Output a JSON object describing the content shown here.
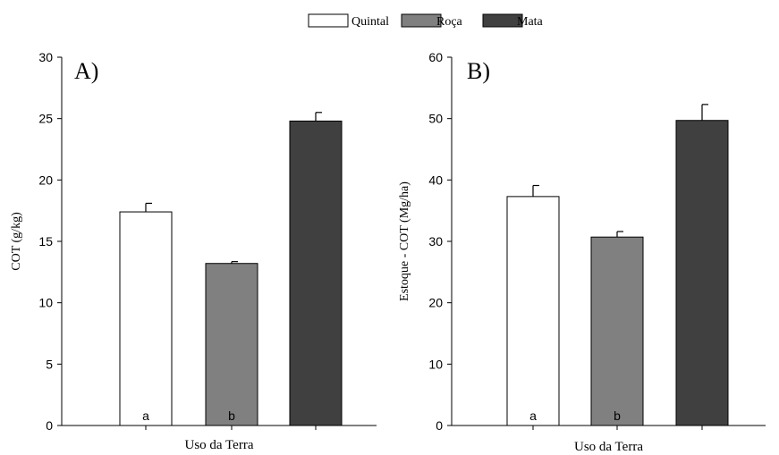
{
  "legend": {
    "position": "top-center",
    "items": [
      {
        "label": "Quintal",
        "color": "#ffffff"
      },
      {
        "label": "Roça",
        "color": "#808080"
      },
      {
        "label": "Mata",
        "color": "#404040"
      }
    ]
  },
  "chart_data": [
    {
      "type": "bar",
      "panel_label": "A)",
      "xlabel": "Uso da Terra",
      "ylabel": "COT (g/kg)",
      "ylim": [
        0,
        30
      ],
      "yticks": [
        0,
        5,
        10,
        15,
        20,
        25,
        30
      ],
      "categories": [
        "Quintal",
        "Roça",
        "Mata"
      ],
      "values": [
        17.4,
        13.2,
        24.8
      ],
      "errors": [
        0.7,
        0.15,
        0.7
      ],
      "colors": [
        "#ffffff",
        "#808080",
        "#404040"
      ],
      "bar_letters": [
        "a",
        "b",
        ""
      ],
      "grid": false
    },
    {
      "type": "bar",
      "panel_label": "B)",
      "xlabel": "Uso da Terra",
      "ylabel": "Estoque - COT (Mg/ha)",
      "ylim": [
        0,
        60
      ],
      "yticks": [
        0,
        10,
        20,
        30,
        40,
        50,
        60
      ],
      "categories": [
        "Quintal",
        "Roça",
        "Mata"
      ],
      "values": [
        37.3,
        30.7,
        49.7
      ],
      "errors": [
        1.8,
        0.9,
        2.6
      ],
      "colors": [
        "#ffffff",
        "#808080",
        "#404040"
      ],
      "bar_letters": [
        "a",
        "b",
        ""
      ],
      "grid": false
    }
  ]
}
